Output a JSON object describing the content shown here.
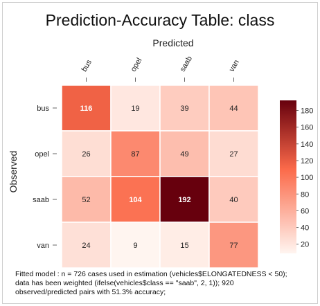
{
  "title": "Prediction-Accuracy Table: class",
  "chart_data": {
    "type": "heatmap",
    "title": "Prediction-Accuracy Table: class",
    "xlabel": "Predicted",
    "ylabel": "Observed",
    "x_categories": [
      "bus",
      "opel",
      "saab",
      "van"
    ],
    "y_categories": [
      "bus",
      "opel",
      "saab",
      "van"
    ],
    "values": [
      [
        116,
        19,
        39,
        44
      ],
      [
        26,
        87,
        49,
        27
      ],
      [
        52,
        104,
        192,
        40
      ],
      [
        24,
        9,
        15,
        77
      ]
    ],
    "colorbar": {
      "ticks": [
        20,
        40,
        60,
        80,
        100,
        120,
        140,
        160,
        180
      ],
      "range": [
        9,
        192
      ],
      "low_color": "#fff5f0",
      "mid_color": "#fb6a4a",
      "high_color": "#67000d"
    }
  },
  "footnote": [
    "Fitted model : n = 726 cases used in estimation (vehicles$ELONGATEDNESS < 50);",
    "data has been weighted (ifelse(vehicles$class == \"saab\", 2, 1)); 920",
    "observed/predicted pairs with 51.3% accuracy;"
  ]
}
